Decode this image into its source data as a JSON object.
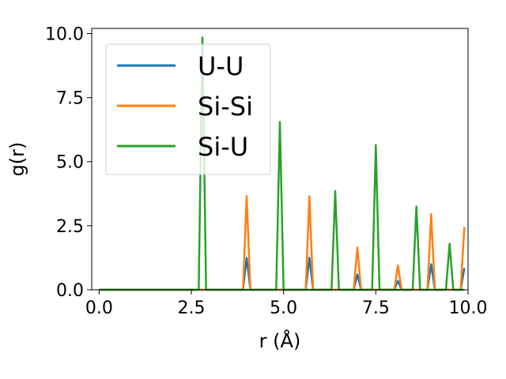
{
  "chart_data": {
    "type": "line",
    "xlabel": "r (Å)",
    "ylabel": "g(r)",
    "xlim": [
      -0.2,
      10.0
    ],
    "ylim": [
      0,
      10.2
    ],
    "xticks": [
      0.0,
      2.5,
      5.0,
      7.5,
      10.0
    ],
    "yticks": [
      0.0,
      2.5,
      5.0,
      7.5,
      10.0
    ],
    "xtick_labels": [
      "0.0",
      "2.5",
      "5.0",
      "7.5",
      "10.0"
    ],
    "ytick_labels": [
      "0.0",
      "2.5",
      "5.0",
      "7.5",
      "10.0"
    ],
    "grid": false,
    "legend_position": "upper-left",
    "series": [
      {
        "name": "U-U",
        "color": "#1f77b4",
        "x": [
          0.0,
          3.9,
          4.0,
          4.1,
          5.6,
          5.7,
          5.8,
          6.9,
          7.0,
          7.1,
          8.0,
          8.1,
          8.2,
          8.9,
          9.0,
          9.1,
          9.8,
          9.9
        ],
        "y": [
          0,
          0,
          1.25,
          0,
          0,
          1.25,
          0,
          0,
          0.6,
          0,
          0,
          0.35,
          0,
          0,
          1.0,
          0,
          0,
          0.85
        ]
      },
      {
        "name": "Si-Si",
        "color": "#ff7f0e",
        "x": [
          0.0,
          3.9,
          4.0,
          4.1,
          5.6,
          5.7,
          5.8,
          6.9,
          7.0,
          7.1,
          8.0,
          8.1,
          8.2,
          8.9,
          9.0,
          9.1,
          9.8,
          9.9
        ],
        "y": [
          0,
          0,
          3.65,
          0,
          0,
          3.65,
          0,
          0,
          1.65,
          0,
          0,
          0.95,
          0,
          0,
          2.95,
          0,
          0,
          2.45
        ]
      },
      {
        "name": "Si-U",
        "color": "#2ca02c",
        "x": [
          0.0,
          2.7,
          2.8,
          2.9,
          4.8,
          4.9,
          5.0,
          6.3,
          6.4,
          6.5,
          7.4,
          7.5,
          7.6,
          8.5,
          8.6,
          8.7,
          9.4,
          9.5,
          9.6,
          9.9
        ],
        "y": [
          0,
          0,
          9.85,
          0,
          0,
          6.55,
          0,
          0,
          3.85,
          0,
          0,
          5.65,
          0,
          0,
          3.25,
          0,
          0,
          1.8,
          0,
          0
        ]
      }
    ]
  }
}
